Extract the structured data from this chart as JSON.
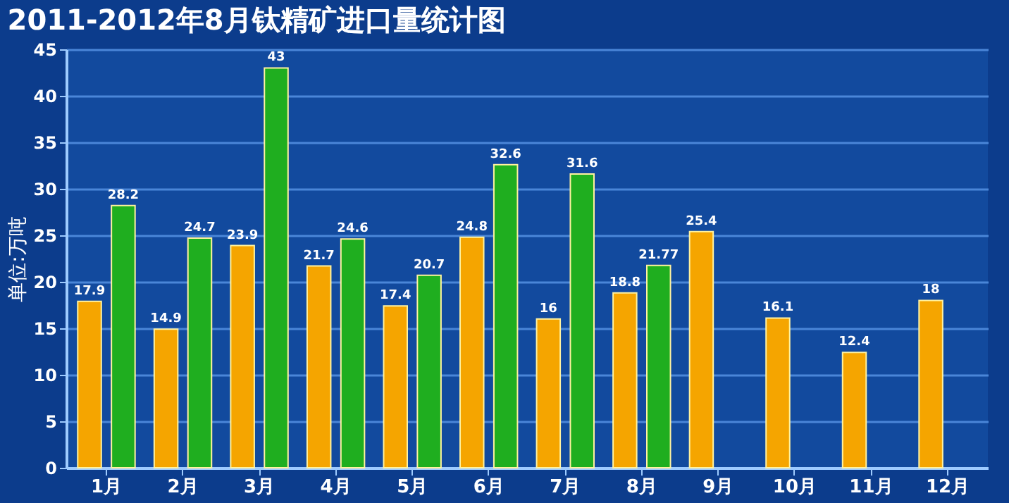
{
  "chart_data": {
    "type": "bar",
    "title": "2011-2012年8月钛精矿进口量统计图",
    "ylabel": "单位:万吨",
    "categories": [
      "1月",
      "2月",
      "3月",
      "4月",
      "5月",
      "6月",
      "7月",
      "8月",
      "9月",
      "10月",
      "11月",
      "12月"
    ],
    "series": [
      {
        "color": "#f5a500",
        "values": [
          17.9,
          14.9,
          23.9,
          21.7,
          17.4,
          24.8,
          16,
          18.8,
          25.4,
          16.1,
          12.4,
          18
        ]
      },
      {
        "color": "#1fae1f",
        "values": [
          28.2,
          24.7,
          43,
          24.6,
          20.7,
          32.6,
          31.6,
          21.77,
          null,
          null,
          null,
          null
        ]
      }
    ],
    "ylim": [
      0,
      45
    ],
    "yticks": [
      0,
      5,
      10,
      15,
      20,
      25,
      30,
      35,
      40,
      45
    ],
    "grid": "y",
    "data_labels": true,
    "legend": false
  }
}
